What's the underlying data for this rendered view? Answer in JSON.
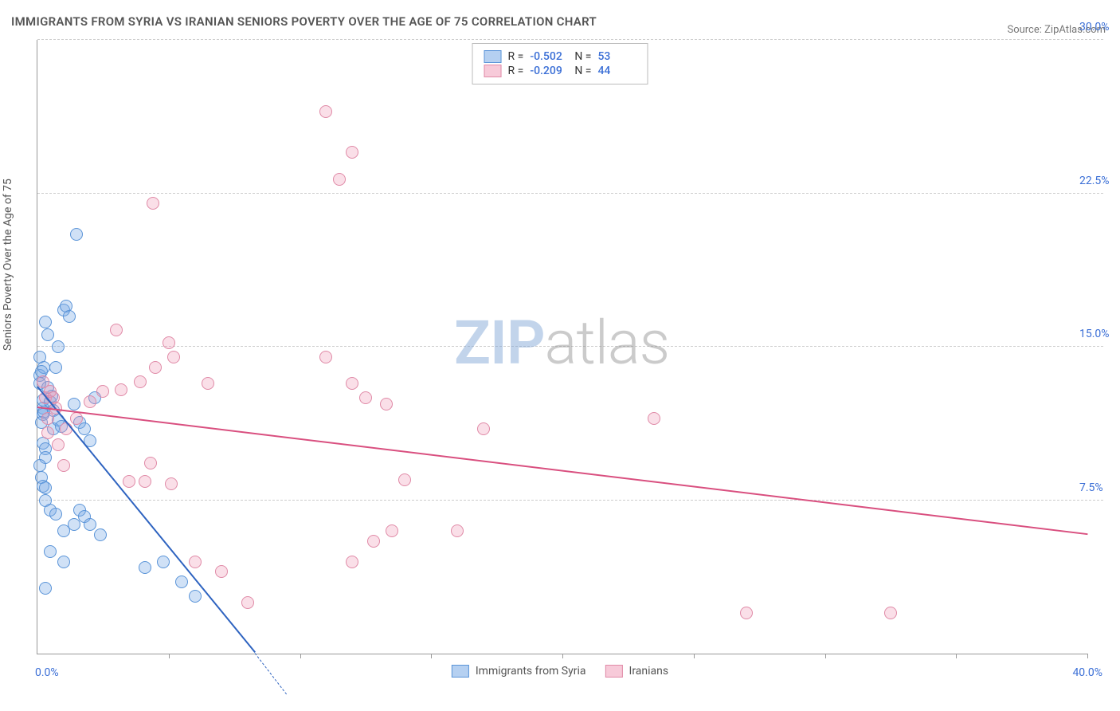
{
  "title": "IMMIGRANTS FROM SYRIA VS IRANIAN SENIORS POVERTY OVER THE AGE OF 75 CORRELATION CHART",
  "source": "Source: ZipAtlas.com",
  "ylabel": "Seniors Poverty Over the Age of 75",
  "chart": {
    "type": "scatter",
    "xlim": [
      0,
      40
    ],
    "ylim": [
      0,
      30
    ],
    "xtick_positions": [
      5,
      10,
      15,
      20,
      25,
      30,
      35,
      40
    ],
    "yticks": [
      7.5,
      15.0,
      22.5,
      30.0
    ],
    "ytick_labels": [
      "7.5%",
      "15.0%",
      "22.5%",
      "30.0%"
    ],
    "x_start_label": "0.0%",
    "x_end_label": "40.0%",
    "grid_color": "#cccccc",
    "axis_color": "#999999",
    "background_color": "#ffffff",
    "marker_radius": 7,
    "series": [
      {
        "name": "Immigrants from Syria",
        "fill": "rgba(120,170,230,0.35)",
        "stroke": "#5a94d8",
        "trend_color": "#2e63c0",
        "trend_width": 2,
        "R": "-0.502",
        "N": "53",
        "trend": {
          "x1": 0,
          "y1": 13.0,
          "x2": 8.3,
          "y2": 0,
          "dash_to_x": 8.3
        },
        "points": [
          [
            0.1,
            13.6
          ],
          [
            0.1,
            13.2
          ],
          [
            0.2,
            12.0
          ],
          [
            0.2,
            12.4
          ],
          [
            0.2,
            11.7
          ],
          [
            0.15,
            11.3
          ],
          [
            0.25,
            11.8
          ],
          [
            0.2,
            10.3
          ],
          [
            0.3,
            10.0
          ],
          [
            0.3,
            9.6
          ],
          [
            0.1,
            9.2
          ],
          [
            0.15,
            8.6
          ],
          [
            0.2,
            8.2
          ],
          [
            0.3,
            8.1
          ],
          [
            0.1,
            14.5
          ],
          [
            0.25,
            14.0
          ],
          [
            0.4,
            13.0
          ],
          [
            0.5,
            12.3
          ],
          [
            0.6,
            11.9
          ],
          [
            0.6,
            11.0
          ],
          [
            0.55,
            12.6
          ],
          [
            0.8,
            11.4
          ],
          [
            0.9,
            11.1
          ],
          [
            0.7,
            14.0
          ],
          [
            0.8,
            15.0
          ],
          [
            0.4,
            15.6
          ],
          [
            0.3,
            16.2
          ],
          [
            1.0,
            16.8
          ],
          [
            1.1,
            17.0
          ],
          [
            1.2,
            16.5
          ],
          [
            0.15,
            13.8
          ],
          [
            1.5,
            20.5
          ],
          [
            1.4,
            12.2
          ],
          [
            1.6,
            11.3
          ],
          [
            1.8,
            11.0
          ],
          [
            2.0,
            10.4
          ],
          [
            2.2,
            12.5
          ],
          [
            0.3,
            7.5
          ],
          [
            0.5,
            7.0
          ],
          [
            0.7,
            6.8
          ],
          [
            1.0,
            6.0
          ],
          [
            1.4,
            6.3
          ],
          [
            1.6,
            7.0
          ],
          [
            1.8,
            6.7
          ],
          [
            2.0,
            6.3
          ],
          [
            2.4,
            5.8
          ],
          [
            0.5,
            5.0
          ],
          [
            1.0,
            4.5
          ],
          [
            0.3,
            3.2
          ],
          [
            4.1,
            4.2
          ],
          [
            4.8,
            4.5
          ],
          [
            5.5,
            3.5
          ],
          [
            6.0,
            2.8
          ]
        ]
      },
      {
        "name": "Iranians",
        "fill": "rgba(240,150,180,0.30)",
        "stroke": "#e08aa7",
        "trend_color": "#d94f7f",
        "trend_width": 2,
        "R": "-0.209",
        "N": "44",
        "trend": {
          "x1": 0,
          "y1": 12.0,
          "x2": 40,
          "y2": 5.8
        },
        "points": [
          [
            0.2,
            13.3
          ],
          [
            0.3,
            12.5
          ],
          [
            0.4,
            11.5
          ],
          [
            0.4,
            10.8
          ],
          [
            0.5,
            12.8
          ],
          [
            0.6,
            12.5
          ],
          [
            0.7,
            12.0
          ],
          [
            0.8,
            10.2
          ],
          [
            1.0,
            9.2
          ],
          [
            1.1,
            11.0
          ],
          [
            1.5,
            11.5
          ],
          [
            2.0,
            12.3
          ],
          [
            2.5,
            12.8
          ],
          [
            3.0,
            15.8
          ],
          [
            4.4,
            22.0
          ],
          [
            3.9,
            13.3
          ],
          [
            3.2,
            12.9
          ],
          [
            4.5,
            14.0
          ],
          [
            5.0,
            15.2
          ],
          [
            5.2,
            14.5
          ],
          [
            6.5,
            13.2
          ],
          [
            3.5,
            8.4
          ],
          [
            4.1,
            8.4
          ],
          [
            4.3,
            9.3
          ],
          [
            5.1,
            8.3
          ],
          [
            6.0,
            4.5
          ],
          [
            7.0,
            4.0
          ],
          [
            8.0,
            2.5
          ],
          [
            11.0,
            14.5
          ],
          [
            11.5,
            23.2
          ],
          [
            11.0,
            26.5
          ],
          [
            12.0,
            24.5
          ],
          [
            12.0,
            13.2
          ],
          [
            12.5,
            12.5
          ],
          [
            13.3,
            12.2
          ],
          [
            12.0,
            4.5
          ],
          [
            12.8,
            5.5
          ],
          [
            13.5,
            6.0
          ],
          [
            14.0,
            8.5
          ],
          [
            16.0,
            6.0
          ],
          [
            17.0,
            11.0
          ],
          [
            23.5,
            11.5
          ],
          [
            27.0,
            2.0
          ],
          [
            32.5,
            2.0
          ]
        ]
      }
    ]
  },
  "legend_top": [
    {
      "swatch_fill": "rgba(120,170,230,0.55)",
      "swatch_border": "#5a94d8",
      "R": "-0.502",
      "N": "53"
    },
    {
      "swatch_fill": "rgba(240,150,180,0.50)",
      "swatch_border": "#e08aa7",
      "R": "-0.209",
      "N": "44"
    }
  ],
  "legend_bottom": [
    {
      "swatch_fill": "rgba(120,170,230,0.55)",
      "swatch_border": "#5a94d8",
      "label": "Immigrants from Syria"
    },
    {
      "swatch_fill": "rgba(240,150,180,0.50)",
      "swatch_border": "#e08aa7",
      "label": "Iranians"
    }
  ],
  "watermark": {
    "part1": "ZIP",
    "part2": "atlas"
  }
}
